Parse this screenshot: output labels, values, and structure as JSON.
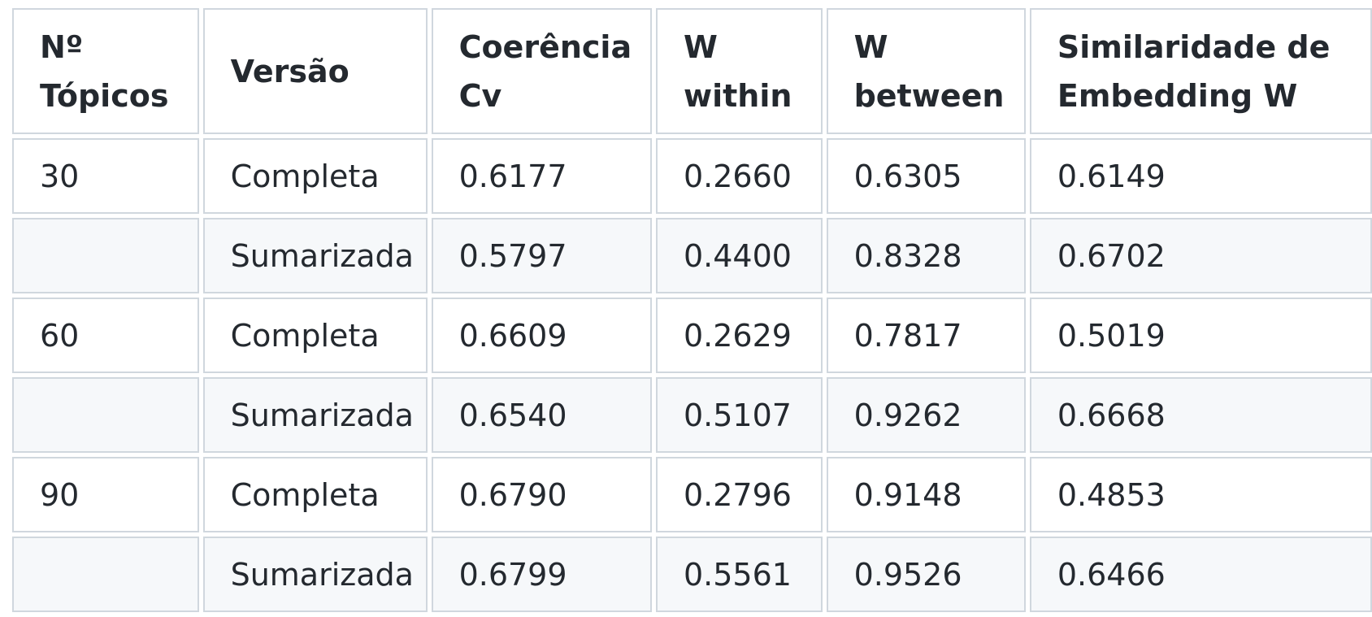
{
  "table": {
    "headers": [
      [
        "Nº",
        "Tópicos"
      ],
      [
        "Versão"
      ],
      [
        "Coerência",
        "Cv"
      ],
      [
        "W",
        "within"
      ],
      [
        "W",
        "between"
      ],
      [
        "Similaridade de",
        "Embedding W"
      ]
    ],
    "rows": [
      [
        "30",
        "Completa",
        "0.6177",
        "0.2660",
        "0.6305",
        "0.6149"
      ],
      [
        "",
        "Sumarizada",
        "0.5797",
        "0.4400",
        "0.8328",
        "0.6702"
      ],
      [
        "60",
        "Completa",
        "0.6609",
        "0.2629",
        "0.7817",
        "0.5019"
      ],
      [
        "",
        "Sumarizada",
        "0.6540",
        "0.5107",
        "0.9262",
        "0.6668"
      ],
      [
        "90",
        "Completa",
        "0.6790",
        "0.2796",
        "0.9148",
        "0.4853"
      ],
      [
        "",
        "Sumarizada",
        "0.6799",
        "0.5561",
        "0.9526",
        "0.6466"
      ]
    ]
  }
}
